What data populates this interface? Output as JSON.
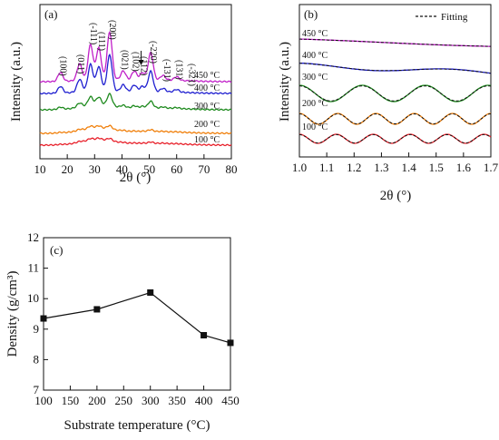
{
  "chart_data": [
    {
      "panel": "(a)",
      "type": "line",
      "title": "",
      "xlabel": "2θ (°)",
      "ylabel": "Intensity (a.u.)",
      "xlim": [
        10,
        80
      ],
      "xticks": [
        "10",
        "20",
        "30",
        "40",
        "50",
        "60",
        "70",
        "80"
      ],
      "grid": false,
      "peak_annotations": [
        {
          "label": "(100)",
          "x": 17.5
        },
        {
          "label": "(011)",
          "x": 24
        },
        {
          "label": "(-111)",
          "x": 28.5
        },
        {
          "label": "(111)",
          "x": 31.5
        },
        {
          "label": "(200)",
          "x": 35.5
        },
        {
          "label": "(021)",
          "x": 40
        },
        {
          "label": "(102)",
          "x": 44
        },
        {
          "label": "(112)",
          "x": 47
        },
        {
          "label": "(-220)",
          "x": 50.5
        },
        {
          "label": "(-131)",
          "x": 55.5
        },
        {
          "label": "(131)",
          "x": 60
        },
        {
          "label": "(-321)",
          "x": 64.5
        }
      ],
      "series": [
        {
          "name": "100 °C",
          "color": "#e8202a"
        },
        {
          "name": "200 °C",
          "color": "#f07f0a"
        },
        {
          "name": "300 °C",
          "color": "#1e8a1e"
        },
        {
          "name": "400 °C",
          "color": "#1f1fd0"
        },
        {
          "name": "450 °C",
          "color": "#c020c8"
        }
      ]
    },
    {
      "panel": "(b)",
      "type": "line",
      "title": "",
      "xlabel": "2θ (°)",
      "ylabel": "Intensity (a.u.)",
      "xlim": [
        1.0,
        1.7
      ],
      "xticks": [
        "1.0",
        "1.1",
        "1.2",
        "1.3",
        "1.4",
        "1.5",
        "1.6",
        "1.7"
      ],
      "grid": false,
      "legend": {
        "position": "top-right",
        "entries": [
          "Fitting"
        ]
      },
      "series": [
        {
          "name": "450 °C",
          "color": "#c020c8"
        },
        {
          "name": "400 °C",
          "color": "#1f1fd0"
        },
        {
          "name": "300 °C",
          "color": "#1e8a1e"
        },
        {
          "name": "200 °C",
          "color": "#f07f0a"
        },
        {
          "name": "100 °C",
          "color": "#e8202a"
        }
      ]
    },
    {
      "panel": "(c)",
      "type": "line",
      "title": "",
      "xlabel": "Substrate temperature (°C)",
      "ylabel": "Density (g/cm³)",
      "xlim": [
        100,
        450
      ],
      "ylim": [
        7,
        12
      ],
      "xticks": [
        "100",
        "150",
        "200",
        "250",
        "300",
        "350",
        "400",
        "450"
      ],
      "yticks": [
        "7",
        "8",
        "9",
        "10",
        "11",
        "12"
      ],
      "grid": false,
      "x": [
        100,
        200,
        300,
        400,
        450
      ],
      "y": [
        9.35,
        9.65,
        10.2,
        8.8,
        8.55
      ],
      "color": "#111111"
    }
  ]
}
